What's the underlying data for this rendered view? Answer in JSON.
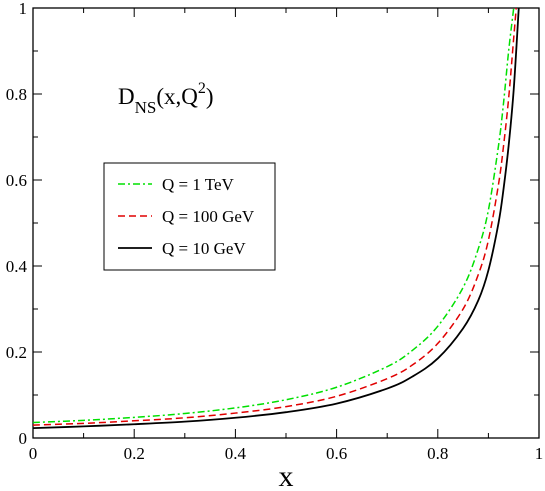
{
  "chart_data": {
    "type": "line",
    "xlabel": "x",
    "ylabel": "",
    "xlim": [
      0,
      1
    ],
    "ylim": [
      0,
      1
    ],
    "xticks": [
      "0",
      "0.2",
      "0.4",
      "0.6",
      "0.8",
      "1"
    ],
    "yticks": [
      "0",
      "0.2",
      "0.4",
      "0.6",
      "0.8",
      "1"
    ],
    "grid": false,
    "legend_position": "middle-left",
    "annotation": {
      "main": "D",
      "subscript": "NS",
      "args": "(x,Q",
      "superscript": "2",
      "close": ")"
    },
    "series": [
      {
        "name": "Q = 1 TeV",
        "color": "#00e000",
        "dash": "dash-dot",
        "x": [
          0.0,
          0.1,
          0.2,
          0.3,
          0.4,
          0.5,
          0.6,
          0.7,
          0.75,
          0.8,
          0.85,
          0.88,
          0.9,
          0.92,
          0.93,
          0.94,
          0.95
        ],
        "y": [
          0.036,
          0.041,
          0.048,
          0.057,
          0.07,
          0.089,
          0.118,
          0.166,
          0.204,
          0.26,
          0.35,
          0.44,
          0.53,
          0.68,
          0.78,
          0.9,
          1.0
        ]
      },
      {
        "name": "Q = 100 GeV",
        "color": "#e00000",
        "dash": "dash",
        "x": [
          0.0,
          0.1,
          0.2,
          0.3,
          0.4,
          0.5,
          0.6,
          0.7,
          0.75,
          0.8,
          0.85,
          0.88,
          0.9,
          0.92,
          0.93,
          0.94,
          0.95,
          0.955
        ],
        "y": [
          0.03,
          0.034,
          0.04,
          0.047,
          0.058,
          0.073,
          0.097,
          0.138,
          0.17,
          0.22,
          0.3,
          0.38,
          0.46,
          0.59,
          0.68,
          0.79,
          0.93,
          1.0
        ]
      },
      {
        "name": "Q = 10 GeV",
        "color": "#000000",
        "dash": "solid",
        "x": [
          0.0,
          0.1,
          0.2,
          0.3,
          0.4,
          0.5,
          0.6,
          0.7,
          0.75,
          0.8,
          0.85,
          0.88,
          0.9,
          0.92,
          0.93,
          0.94,
          0.95,
          0.96
        ],
        "y": [
          0.023,
          0.027,
          0.032,
          0.038,
          0.047,
          0.06,
          0.08,
          0.115,
          0.143,
          0.185,
          0.255,
          0.32,
          0.39,
          0.5,
          0.58,
          0.68,
          0.81,
          1.0
        ]
      }
    ]
  }
}
